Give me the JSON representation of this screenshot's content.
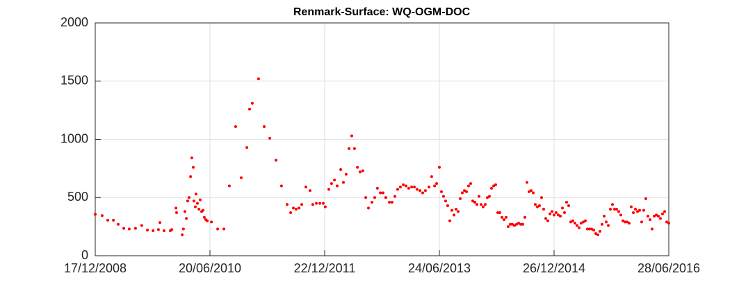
{
  "chart_data": {
    "type": "scatter",
    "title": "Renmark-Surface: WQ-OGM-DOC",
    "color": "#ff0000",
    "grid": true,
    "xlim": [
      "2008-12-17",
      "2016-06-28"
    ],
    "xticks": [
      {
        "value": "2008-12-17",
        "label": "17/12/2008"
      },
      {
        "value": "2010-06-20",
        "label": "20/06/2010"
      },
      {
        "value": "2011-12-22",
        "label": "22/12/2011"
      },
      {
        "value": "2013-06-24",
        "label": "24/06/2013"
      },
      {
        "value": "2014-12-26",
        "label": "26/12/2014"
      },
      {
        "value": "2016-06-28",
        "label": "28/06/2016"
      }
    ],
    "ylim": [
      0,
      2000
    ],
    "yticks": [
      0,
      500,
      1000,
      1500,
      2000
    ],
    "x": [
      "2008-12-17",
      "2009-01-19",
      "2009-02-15",
      "2009-03-14",
      "2009-04-06",
      "2009-05-03",
      "2009-05-29",
      "2009-06-28",
      "2009-07-28",
      "2009-08-24",
      "2009-09-20",
      "2009-10-16",
      "2009-10-23",
      "2009-11-12",
      "2009-12-12",
      "2009-12-19",
      "2010-01-08",
      "2010-01-11",
      "2010-02-07",
      "2010-02-13",
      "2010-02-20",
      "2010-02-27",
      "2010-03-05",
      "2010-03-12",
      "2010-03-19",
      "2010-03-25",
      "2010-04-01",
      "2010-04-04",
      "2010-04-11",
      "2010-04-14",
      "2010-04-21",
      "2010-04-28",
      "2010-05-04",
      "2010-05-11",
      "2010-05-18",
      "2010-05-24",
      "2010-05-31",
      "2010-06-07",
      "2010-06-27",
      "2010-07-27",
      "2010-08-26",
      "2010-09-21",
      "2010-10-21",
      "2010-11-17",
      "2010-12-14",
      "2010-12-27",
      "2011-01-09",
      "2011-02-08",
      "2011-03-07",
      "2011-04-03",
      "2011-05-03",
      "2011-05-29",
      "2011-06-25",
      "2011-07-12",
      "2011-07-25",
      "2011-08-07",
      "2011-08-21",
      "2011-09-03",
      "2011-09-23",
      "2011-10-13",
      "2011-10-26",
      "2011-11-12",
      "2011-11-29",
      "2011-12-15",
      "2011-12-25",
      "2012-01-11",
      "2012-01-24",
      "2012-02-07",
      "2012-02-20",
      "2012-03-08",
      "2012-03-21",
      "2012-04-03",
      "2012-04-17",
      "2012-04-30",
      "2012-05-13",
      "2012-05-27",
      "2012-06-09",
      "2012-06-22",
      "2012-07-06",
      "2012-07-19",
      "2012-08-05",
      "2012-08-18",
      "2012-08-31",
      "2012-09-14",
      "2012-09-27",
      "2012-10-10",
      "2012-10-27",
      "2012-11-09",
      "2012-11-23",
      "2012-12-06",
      "2012-12-19",
      "2013-01-02",
      "2013-01-15",
      "2013-01-28",
      "2013-02-11",
      "2013-02-24",
      "2013-03-09",
      "2013-03-23",
      "2013-04-05",
      "2013-04-18",
      "2013-05-05",
      "2013-05-18",
      "2013-06-01",
      "2013-06-11",
      "2013-06-24",
      "2013-07-04",
      "2013-07-14",
      "2013-07-24",
      "2013-08-03",
      "2013-08-13",
      "2013-08-23",
      "2013-09-02",
      "2013-09-12",
      "2013-09-22",
      "2013-10-02",
      "2013-10-12",
      "2013-10-22",
      "2013-11-01",
      "2013-11-11",
      "2013-11-21",
      "2013-12-01",
      "2013-12-11",
      "2013-12-21",
      "2013-12-31",
      "2014-01-10",
      "2014-01-20",
      "2014-01-30",
      "2014-02-09",
      "2014-02-19",
      "2014-03-01",
      "2014-03-11",
      "2014-03-21",
      "2014-03-31",
      "2014-04-10",
      "2014-04-20",
      "2014-04-30",
      "2014-05-10",
      "2014-05-20",
      "2014-05-30",
      "2014-06-09",
      "2014-06-19",
      "2014-06-29",
      "2014-07-09",
      "2014-07-19",
      "2014-07-29",
      "2014-08-08",
      "2014-08-18",
      "2014-08-28",
      "2014-09-07",
      "2014-09-17",
      "2014-09-27",
      "2014-10-07",
      "2014-10-17",
      "2014-10-27",
      "2014-11-06",
      "2014-11-16",
      "2014-11-26",
      "2014-12-06",
      "2014-12-16",
      "2014-12-26",
      "2015-01-05",
      "2015-01-15",
      "2015-01-25",
      "2015-02-04",
      "2015-02-14",
      "2015-02-24",
      "2015-03-06",
      "2015-03-16",
      "2015-03-26",
      "2015-04-05",
      "2015-04-15",
      "2015-04-25",
      "2015-05-05",
      "2015-05-15",
      "2015-05-25",
      "2015-06-04",
      "2015-06-14",
      "2015-06-24",
      "2015-07-04",
      "2015-07-14",
      "2015-07-24",
      "2015-08-03",
      "2015-08-13",
      "2015-08-23",
      "2015-09-02",
      "2015-09-12",
      "2015-09-22",
      "2015-10-02",
      "2015-10-12",
      "2015-10-22",
      "2015-11-01",
      "2015-11-11",
      "2015-11-21",
      "2015-12-01",
      "2015-12-11",
      "2015-12-21",
      "2015-12-31",
      "2016-01-10",
      "2016-01-20",
      "2016-01-30",
      "2016-02-09",
      "2016-02-19",
      "2016-02-29",
      "2016-03-10",
      "2016-03-20",
      "2016-03-30",
      "2016-04-09",
      "2016-04-19",
      "2016-04-29",
      "2016-05-09",
      "2016-05-19",
      "2016-05-29",
      "2016-06-08",
      "2016-06-18",
      "2016-06-28"
    ],
    "values": [
      355,
      345,
      305,
      305,
      270,
      235,
      230,
      235,
      260,
      220,
      215,
      225,
      285,
      215,
      215,
      225,
      410,
      370,
      180,
      230,
      380,
      320,
      470,
      500,
      680,
      840,
      760,
      470,
      420,
      530,
      450,
      400,
      480,
      380,
      390,
      330,
      310,
      300,
      290,
      230,
      230,
      600,
      1110,
      670,
      930,
      1260,
      1310,
      1520,
      1110,
      1010,
      820,
      600,
      440,
      370,
      410,
      400,
      410,
      440,
      590,
      560,
      440,
      450,
      450,
      450,
      420,
      570,
      620,
      650,
      600,
      740,
      630,
      700,
      920,
      1030,
      920,
      760,
      720,
      730,
      500,
      410,
      460,
      500,
      580,
      540,
      540,
      500,
      460,
      460,
      510,
      570,
      590,
      610,
      600,
      580,
      590,
      590,
      570,
      560,
      540,
      560,
      590,
      680,
      600,
      620,
      760,
      550,
      510,
      470,
      430,
      300,
      390,
      350,
      400,
      380,
      490,
      540,
      560,
      550,
      600,
      620,
      470,
      460,
      440,
      510,
      440,
      420,
      440,
      500,
      510,
      580,
      600,
      610,
      370,
      370,
      330,
      310,
      330,
      250,
      270,
      270,
      260,
      270,
      280,
      270,
      270,
      330,
      630,
      550,
      560,
      540,
      440,
      420,
      430,
      500,
      400,
      320,
      300,
      360,
      380,
      350,
      370,
      350,
      340,
      410,
      370,
      460,
      430,
      290,
      300,
      280,
      260,
      240,
      280,
      290,
      300,
      230,
      230,
      230,
      220,
      190,
      180,
      210,
      270,
      340,
      290,
      260,
      400,
      440,
      400,
      400,
      380,
      350,
      300,
      290,
      290,
      280,
      420,
      370,
      400,
      380,
      390,
      290,
      390,
      490,
      340,
      310,
      230,
      340,
      350,
      340,
      320,
      360,
      380,
      290,
      280
    ]
  }
}
